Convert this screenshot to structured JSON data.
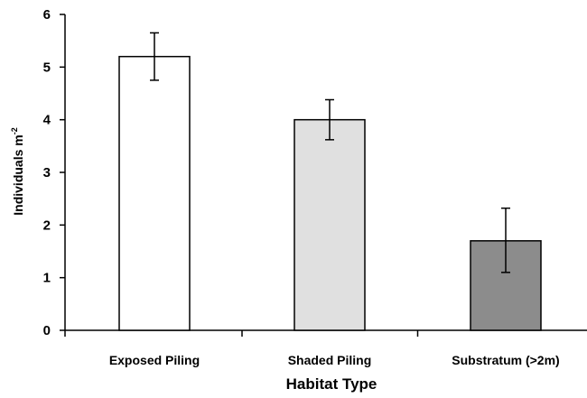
{
  "chart_data": {
    "type": "bar",
    "categories": [
      "Exposed Piling",
      "Shaded Piling",
      "Substratum (>2m)"
    ],
    "values": [
      5.2,
      4.0,
      1.7
    ],
    "error_upper": [
      5.65,
      4.38,
      2.32
    ],
    "error_lower": [
      4.75,
      3.62,
      1.1
    ],
    "bar_colors": [
      "#ffffff",
      "#e0e0e0",
      "#8c8c8c"
    ],
    "title": "",
    "xlabel": "Habitat Type",
    "ylabel": "Individuals m",
    "ylabel_superscript": "-2",
    "ylim": [
      0,
      6
    ],
    "yticks": [
      "0",
      "1",
      "2",
      "3",
      "4",
      "5",
      "6"
    ],
    "grid": false,
    "legend": "none"
  }
}
